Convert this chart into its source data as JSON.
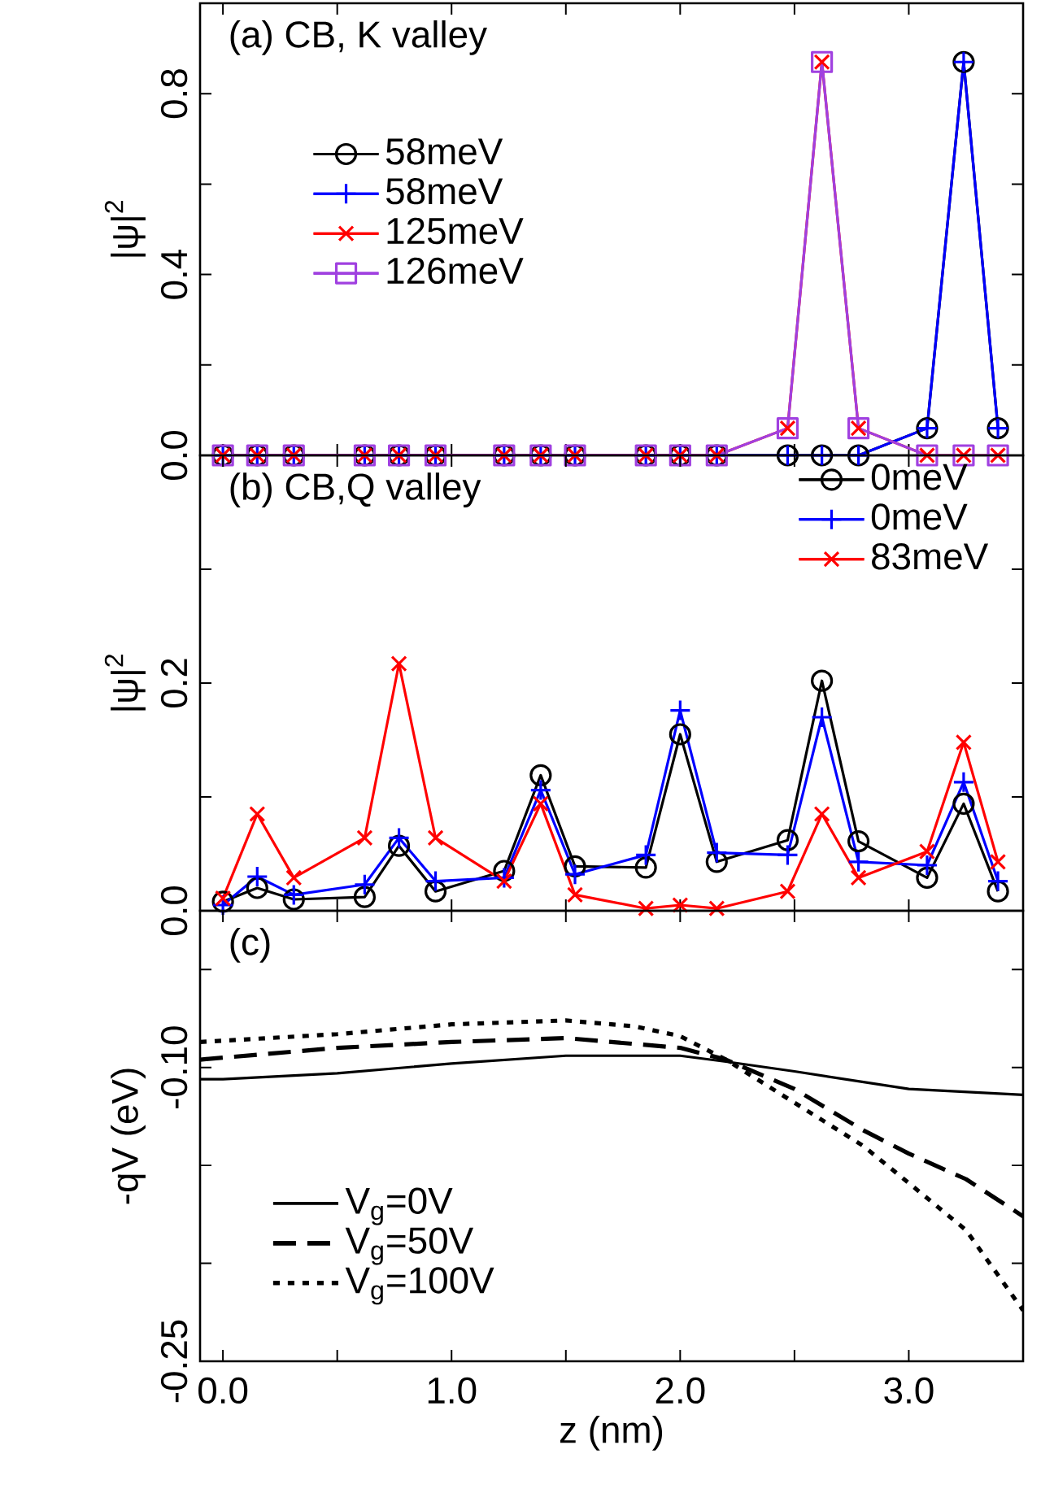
{
  "chart_data": [
    {
      "type": "line",
      "title": "(a) CB, K valley",
      "ylabel": "|ψ|$^{2}$",
      "legend": "top left",
      "tick_labels": "y",
      "x": [
        0.0,
        0.15,
        0.31,
        0.62,
        0.77,
        0.93,
        1.23,
        1.39,
        1.54,
        1.85,
        2.0,
        2.16,
        2.47,
        2.62,
        2.78,
        3.08,
        3.24,
        3.39
      ],
      "xlim": [
        -0.1,
        3.5
      ],
      "ylim": [
        0,
        1.0
      ],
      "xticks": [
        {
          "value": 0,
          "label": null
        },
        {
          "value": 0.5,
          "label": null
        },
        {
          "value": 1,
          "label": null
        },
        {
          "value": 1.5,
          "label": null
        },
        {
          "value": 2,
          "label": null
        },
        {
          "value": 2.5,
          "label": null
        },
        {
          "value": 3,
          "label": null
        }
      ],
      "yticks": [
        {
          "value": 0,
          "label": "0.0"
        },
        {
          "value": 0.2,
          "label": null
        },
        {
          "value": 0.4,
          "label": "0.4"
        },
        {
          "value": 0.6,
          "label": null
        },
        {
          "value": 0.8,
          "label": "0.8"
        }
      ],
      "series": [
        {
          "name": "58meV",
          "color": "#000000",
          "marker": "circle",
          "values": [
            0,
            0,
            0,
            0,
            0,
            0,
            0,
            0,
            0,
            0,
            0,
            0,
            0,
            0,
            0,
            0.06,
            0.87,
            0.06
          ]
        },
        {
          "name": "58meV",
          "color": "#0000ff",
          "marker": "plus",
          "values": [
            0,
            0,
            0,
            0,
            0,
            0,
            0,
            0,
            0,
            0,
            0,
            0,
            0,
            0,
            0,
            0.06,
            0.87,
            0.06
          ]
        },
        {
          "name": "125meV",
          "color": "#ff0000",
          "marker": "cross",
          "values": [
            0,
            0,
            0,
            0,
            0,
            0,
            0,
            0,
            0,
            0,
            0,
            0,
            0.06,
            0.87,
            0.06,
            0,
            0,
            0
          ]
        },
        {
          "name": "126meV",
          "color": "#a040e0",
          "marker": "square",
          "values": [
            0,
            0,
            0,
            0,
            0,
            0,
            0,
            0,
            0,
            0,
            0,
            0,
            0.06,
            0.87,
            0.06,
            0,
            0,
            0
          ]
        }
      ]
    },
    {
      "type": "line",
      "title": "(b) CB,Q valley",
      "ylabel": "|ψ|$^{2}$",
      "legend": "top right",
      "tick_labels": "y",
      "x": [
        0.0,
        0.15,
        0.31,
        0.62,
        0.77,
        0.93,
        1.23,
        1.39,
        1.54,
        1.85,
        2.0,
        2.16,
        2.47,
        2.62,
        2.78,
        3.08,
        3.24,
        3.39
      ],
      "xlim": [
        -0.1,
        3.5
      ],
      "ylim": [
        0,
        0.4
      ],
      "xticks": [
        {
          "value": 0,
          "label": null
        },
        {
          "value": 0.5,
          "label": null
        },
        {
          "value": 1,
          "label": null
        },
        {
          "value": 1.5,
          "label": null
        },
        {
          "value": 2,
          "label": null
        },
        {
          "value": 2.5,
          "label": null
        },
        {
          "value": 3,
          "label": null
        }
      ],
      "yticks": [
        {
          "value": 0,
          "label": "0.0"
        },
        {
          "value": 0.1,
          "label": null
        },
        {
          "value": 0.2,
          "label": "0.2"
        },
        {
          "value": 0.3,
          "label": null
        }
      ],
      "series": [
        {
          "name": "0meV",
          "color": "#000000",
          "marker": "circle",
          "values": [
            0.008,
            0.02,
            0.01,
            0.012,
            0.057,
            0.017,
            0.035,
            0.119,
            0.039,
            0.038,
            0.155,
            0.043,
            0.062,
            0.202,
            0.061,
            0.029,
            0.094,
            0.017
          ]
        },
        {
          "name": "0meV",
          "color": "#0000ff",
          "marker": "plus",
          "values": [
            0.005,
            0.03,
            0.014,
            0.023,
            0.064,
            0.026,
            0.029,
            0.106,
            0.032,
            0.049,
            0.176,
            0.051,
            0.049,
            0.17,
            0.043,
            0.04,
            0.113,
            0.026
          ]
        },
        {
          "name": "83meV",
          "color": "#ff0000",
          "marker": "cross",
          "values": [
            0.011,
            0.085,
            0.029,
            0.064,
            0.217,
            0.064,
            0.026,
            0.094,
            0.014,
            0.002,
            0.005,
            0.002,
            0.017,
            0.085,
            0.029,
            0.052,
            0.148,
            0.043
          ]
        }
      ]
    },
    {
      "type": "line",
      "title": "(c)",
      "ylabel": "-qV (eV)",
      "xlabel": "z (nm)",
      "legend": "bottom left",
      "xlim": [
        -0.1,
        3.5
      ],
      "ylim": [
        -0.25,
        -0.02
      ],
      "xticks": [
        {
          "value": 0,
          "label": "0.0"
        },
        {
          "value": 0.5,
          "label": null
        },
        {
          "value": 1,
          "label": "1.0"
        },
        {
          "value": 1.5,
          "label": null
        },
        {
          "value": 2,
          "label": "2.0"
        },
        {
          "value": 2.5,
          "label": null
        },
        {
          "value": 3,
          "label": "3.0"
        }
      ],
      "yticks": [
        {
          "value": -0.25,
          "label": "-0.25"
        },
        {
          "value": -0.2,
          "label": null
        },
        {
          "value": -0.15,
          "label": null
        },
        {
          "value": -0.1,
          "label": "-0.10"
        },
        {
          "value": -0.05,
          "label": null
        }
      ],
      "series": [
        {
          "name": "V$_{g}$=0V",
          "color": "#000000",
          "line_style": "solid",
          "x": [
            -0.1,
            0.0,
            0.5,
            1.0,
            1.5,
            2.0,
            2.2,
            2.5,
            3.0,
            3.5
          ],
          "values": [
            -0.106,
            -0.106,
            -0.103,
            -0.098,
            -0.094,
            -0.094,
            -0.097,
            -0.102,
            -0.111,
            -0.114
          ]
        },
        {
          "name": "V$_{g}$=50V",
          "color": "#000000",
          "line_style": "dashed",
          "x": [
            -0.1,
            0.5,
            1.0,
            1.5,
            2.0,
            2.2,
            2.5,
            2.8,
            3.0,
            3.25,
            3.5
          ],
          "values": [
            -0.096,
            -0.09,
            -0.087,
            -0.085,
            -0.09,
            -0.096,
            -0.111,
            -0.132,
            -0.144,
            -0.157,
            -0.176
          ]
        },
        {
          "name": "V$_{g}$=100V",
          "color": "#000000",
          "line_style": "dotted",
          "x": [
            -0.1,
            0.5,
            1.0,
            1.5,
            1.8,
            2.0,
            2.2,
            2.5,
            2.8,
            3.0,
            3.25,
            3.5
          ],
          "values": [
            -0.087,
            -0.083,
            -0.078,
            -0.076,
            -0.079,
            -0.084,
            -0.096,
            -0.118,
            -0.14,
            -0.159,
            -0.183,
            -0.224
          ]
        }
      ]
    }
  ]
}
